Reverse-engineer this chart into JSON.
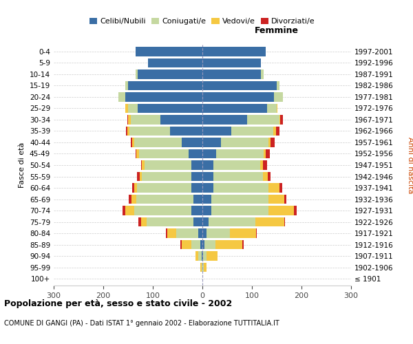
{
  "age_groups": [
    "100+",
    "95-99",
    "90-94",
    "85-89",
    "80-84",
    "75-79",
    "70-74",
    "65-69",
    "60-64",
    "55-59",
    "50-54",
    "45-49",
    "40-44",
    "35-39",
    "30-34",
    "25-29",
    "20-24",
    "15-19",
    "10-14",
    "5-9",
    "0-4"
  ],
  "birth_years": [
    "≤ 1901",
    "1902-1906",
    "1907-1911",
    "1912-1916",
    "1917-1921",
    "1922-1926",
    "1927-1931",
    "1932-1936",
    "1937-1941",
    "1942-1946",
    "1947-1951",
    "1952-1956",
    "1957-1961",
    "1962-1966",
    "1967-1971",
    "1972-1976",
    "1977-1981",
    "1982-1986",
    "1987-1991",
    "1992-1996",
    "1997-2001"
  ],
  "males": {
    "celibi": [
      0,
      0,
      2,
      4,
      8,
      18,
      22,
      18,
      22,
      22,
      22,
      28,
      42,
      65,
      85,
      130,
      155,
      150,
      130,
      110,
      135
    ],
    "coniugati": [
      0,
      2,
      6,
      18,
      45,
      95,
      115,
      115,
      110,
      100,
      95,
      100,
      95,
      82,
      60,
      20,
      14,
      5,
      5,
      0,
      0
    ],
    "vedovi": [
      0,
      2,
      6,
      20,
      18,
      10,
      18,
      10,
      5,
      5,
      5,
      5,
      5,
      5,
      5,
      5,
      0,
      0,
      0,
      0,
      0
    ],
    "divorziati": [
      0,
      0,
      0,
      2,
      2,
      6,
      6,
      5,
      5,
      5,
      2,
      2,
      2,
      2,
      2,
      0,
      0,
      0,
      0,
      0,
      0
    ]
  },
  "females": {
    "nubili": [
      0,
      0,
      2,
      4,
      8,
      12,
      18,
      18,
      22,
      22,
      22,
      28,
      38,
      58,
      90,
      130,
      145,
      150,
      118,
      118,
      128
    ],
    "coniugate": [
      0,
      3,
      6,
      22,
      48,
      95,
      115,
      115,
      112,
      100,
      95,
      95,
      95,
      85,
      65,
      20,
      18,
      5,
      5,
      0,
      0
    ],
    "vedove": [
      0,
      5,
      22,
      55,
      52,
      58,
      52,
      32,
      22,
      10,
      5,
      5,
      5,
      5,
      2,
      2,
      0,
      0,
      0,
      0,
      0
    ],
    "divorziate": [
      0,
      0,
      0,
      2,
      2,
      2,
      5,
      5,
      5,
      5,
      8,
      8,
      8,
      8,
      5,
      0,
      0,
      0,
      0,
      0,
      0
    ]
  },
  "colors": {
    "celibi": "#3a6ea5",
    "coniugati": "#c5d8a0",
    "vedovi": "#f5c842",
    "divorziati": "#cc2222"
  },
  "xlim": 300,
  "title": "Popolazione per età, sesso e stato civile - 2002",
  "subtitle": "COMUNE DI GANGI (PA) - Dati ISTAT 1° gennaio 2002 - Elaborazione TUTTITALIA.IT",
  "ylabel_left": "Fasce di età",
  "ylabel_right": "Anni di nascita",
  "xlabel_femmine": "Femmine",
  "bg_color": "#ffffff",
  "grid_color": "#cccccc"
}
